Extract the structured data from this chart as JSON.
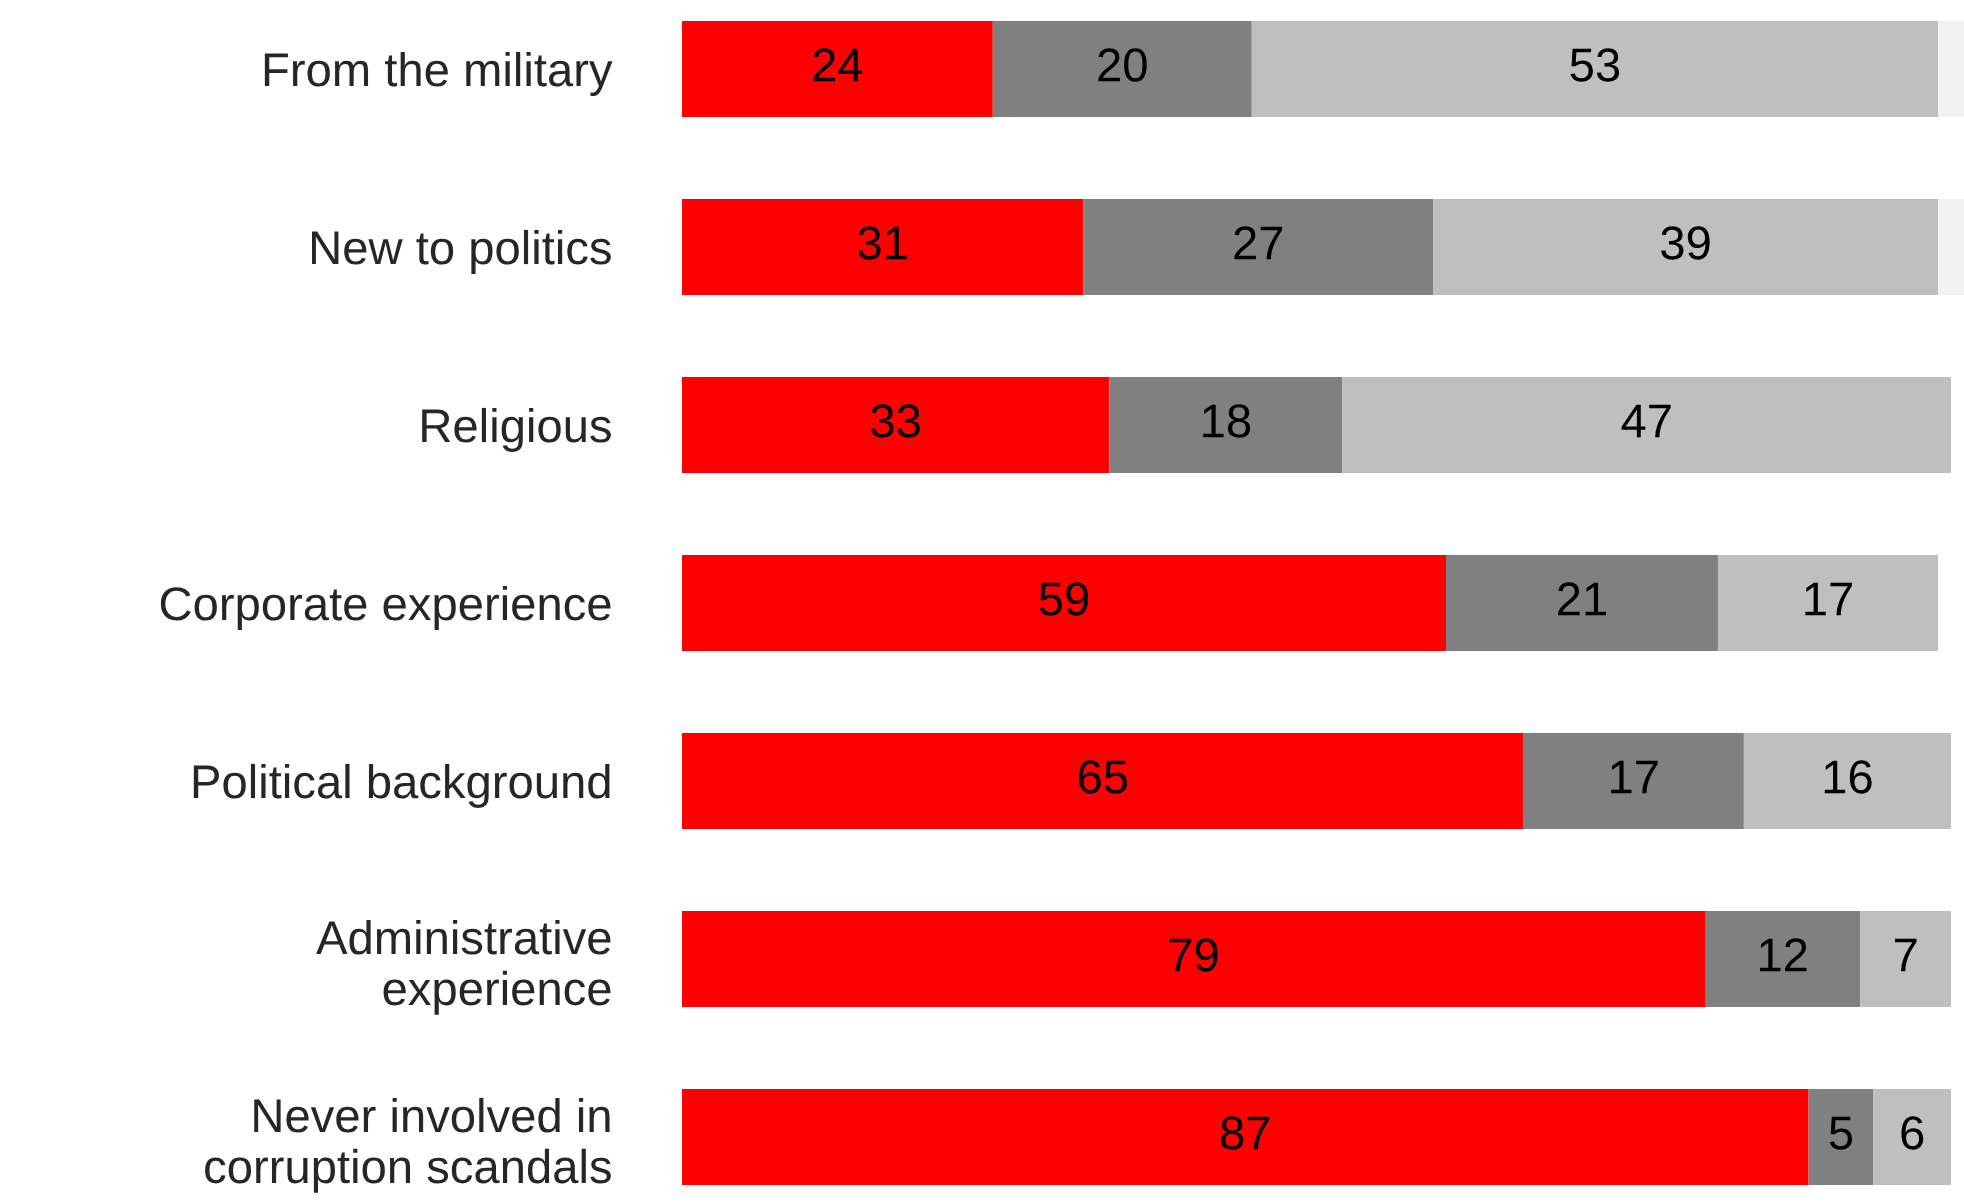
{
  "chart_data": {
    "type": "bar",
    "orientation": "horizontal",
    "stacked": true,
    "categories": [
      "From the military",
      "New to politics",
      "Religious",
      "Corporate experience",
      "Political background",
      "Administrative\nexperience",
      "Never involved in\ncorruption scandals"
    ],
    "series": [
      {
        "color": "#ff0000",
        "values": [
          24,
          31,
          33,
          59,
          65,
          79,
          87
        ],
        "value_labels": [
          "24",
          "31",
          "33",
          "59",
          "65",
          "79",
          "87"
        ]
      },
      {
        "color": "#808080",
        "values": [
          20,
          27,
          18,
          21,
          17,
          12,
          5
        ],
        "value_labels": [
          "20",
          "27",
          "18",
          "21",
          "17",
          "12",
          "5"
        ]
      },
      {
        "color": "#bfbfbf",
        "values": [
          53,
          39,
          47,
          17,
          16,
          7,
          6
        ],
        "value_labels": [
          "53",
          "39",
          "47",
          "17",
          "16",
          "7",
          "6"
        ]
      },
      {
        "color": "#f2f2f2",
        "values": [
          2,
          2,
          0,
          0,
          0,
          0,
          0
        ],
        "value_labels": [
          null,
          null,
          null,
          null,
          null,
          null,
          null
        ]
      }
    ],
    "xlim": [
      0,
      99
    ],
    "grid": false,
    "tick_labels": "y"
  }
}
